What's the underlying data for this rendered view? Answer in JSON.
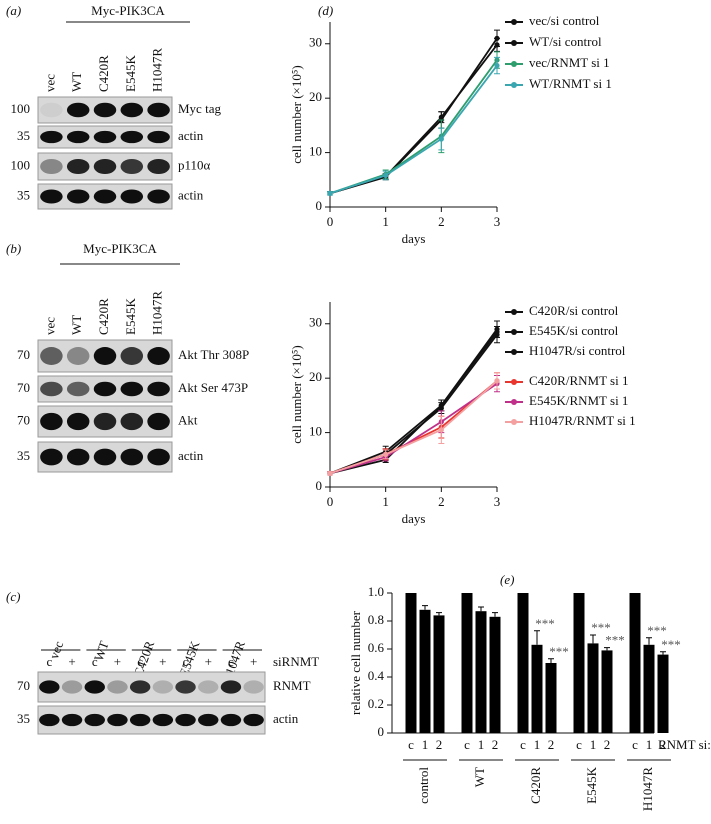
{
  "blots": {
    "a": {
      "panel": "(a)",
      "group": "Myc-PIK3CA",
      "lanes": [
        "vec",
        "WT",
        "C420R",
        "E545K",
        "H1047R"
      ],
      "rows": [
        {
          "marker": "100",
          "label": "Myc tag"
        },
        {
          "marker": "35",
          "label": "actin"
        },
        {
          "marker": "100",
          "label": "p110α"
        },
        {
          "marker": "35",
          "label": "actin"
        }
      ]
    },
    "b": {
      "panel": "(b)",
      "group": "Myc-PIK3CA",
      "lanes": [
        "vec",
        "WT",
        "C420R",
        "E545K",
        "H1047R"
      ],
      "rows": [
        {
          "marker": "70",
          "label": "Akt Thr 308P"
        },
        {
          "marker": "70",
          "label": "Akt Ser 473P"
        },
        {
          "marker": "70",
          "label": "Akt"
        },
        {
          "marker": "35",
          "label": "actin"
        }
      ]
    },
    "c": {
      "panel": "(c)",
      "groups": [
        "vec",
        "WT",
        "C420R",
        "E545K",
        "H1047R"
      ],
      "lanes": [
        "c",
        "+"
      ],
      "treatment": "siRNMT",
      "rows": [
        {
          "marker": "70",
          "label": "RNMT"
        },
        {
          "marker": "35",
          "label": "actin"
        }
      ]
    }
  },
  "chart_data": [
    {
      "type": "line",
      "panel": "(d)",
      "x_label": "days",
      "y_label": "cell number (×10⁵)",
      "x": [
        0,
        1,
        2,
        3
      ],
      "xlim": [
        0,
        3
      ],
      "xticks": [
        0,
        1,
        2,
        3
      ],
      "ylim": [
        0,
        34
      ],
      "yticks": [
        0,
        10,
        20,
        30
      ],
      "series": [
        {
          "name": "vec/si control",
          "color": "#111111",
          "values": [
            2.5,
            5.5,
            16,
            31
          ],
          "errors": [
            0.3,
            0.5,
            1.5,
            1.5
          ]
        },
        {
          "name": "WT/si control",
          "color": "#111111",
          "values": [
            2.5,
            5.6,
            16.5,
            29.8
          ],
          "errors": [
            0.3,
            0.5,
            1,
            1.2
          ]
        },
        {
          "name": "vec/RNMT si 1",
          "color": "#2e9e6e",
          "values": [
            2.5,
            6,
            13,
            27
          ],
          "errors": [
            0.3,
            0.8,
            3,
            1.5
          ]
        },
        {
          "name": "WT/RNMT si 1",
          "color": "#3aa6b0",
          "values": [
            2.5,
            5.8,
            12.5,
            26
          ],
          "errors": [
            0.3,
            0.8,
            2,
            1.5
          ]
        }
      ]
    },
    {
      "type": "line",
      "x_label": "days",
      "y_label": "cell number (×10⁵)",
      "x": [
        0,
        1,
        2,
        3
      ],
      "xlim": [
        0,
        3
      ],
      "xticks": [
        0,
        1,
        2,
        3
      ],
      "ylim": [
        0,
        34
      ],
      "yticks": [
        0,
        10,
        20,
        30
      ],
      "series": [
        {
          "name": "C420R/si control",
          "color": "#111111",
          "values": [
            2.5,
            5,
            15,
            29
          ],
          "errors": [
            0.3,
            0.5,
            1,
            1.5
          ]
        },
        {
          "name": "E545K/si control",
          "color": "#111111",
          "values": [
            2.5,
            6,
            14.5,
            28
          ],
          "errors": [
            0.3,
            1,
            1,
            1.5
          ]
        },
        {
          "name": "H1047R/si control",
          "color": "#111111",
          "values": [
            2.5,
            6.5,
            15,
            28.5
          ],
          "errors": [
            0.3,
            1,
            1,
            1
          ]
        },
        {
          "name": "C420R/RNMT si 1",
          "color": "#e8352e",
          "values": [
            2.5,
            6,
            11,
            19.5
          ],
          "errors": [
            0.3,
            1,
            2,
            1.5
          ]
        },
        {
          "name": "E545K/RNMT si 1",
          "color": "#c0308a",
          "values": [
            2.5,
            5.5,
            12,
            19
          ],
          "errors": [
            0.3,
            0.7,
            2,
            1.5
          ]
        },
        {
          "name": "H1047R/RNMT si 1",
          "color": "#f4a0a0",
          "values": [
            2.5,
            6,
            10.5,
            19.5
          ],
          "errors": [
            0.3,
            0.8,
            2.5,
            1.5
          ]
        }
      ]
    },
    {
      "type": "bar",
      "panel": "(e)",
      "y_label": "relative cell number",
      "x_note": "RNMT si:",
      "categories": [
        "control",
        "WT",
        "C420R",
        "E545K",
        "H1047R"
      ],
      "ylim": [
        0,
        1
      ],
      "yticks": [
        0,
        0.2,
        0.4,
        0.6,
        0.8,
        {
          "value": 1,
          "label": "1.0"
        }
      ],
      "series": [
        {
          "name": "c",
          "color": "#000000",
          "values": [
            1,
            1,
            1,
            1,
            1
          ]
        },
        {
          "name": "1",
          "color": "#000000",
          "values": [
            0.88,
            0.87,
            0.63,
            0.64,
            0.63
          ],
          "errors": [
            0.03,
            0.03,
            0.1,
            0.06,
            0.05
          ],
          "labels": [
            null,
            null,
            "***",
            "***",
            "***"
          ]
        },
        {
          "name": "2",
          "color": "#000000",
          "values": [
            0.84,
            0.83,
            0.5,
            0.59,
            0.56
          ],
          "errors": [
            0.02,
            0.03,
            0.03,
            0.02,
            0.02
          ],
          "labels": [
            null,
            null,
            "***",
            "***",
            "***"
          ]
        }
      ]
    }
  ]
}
